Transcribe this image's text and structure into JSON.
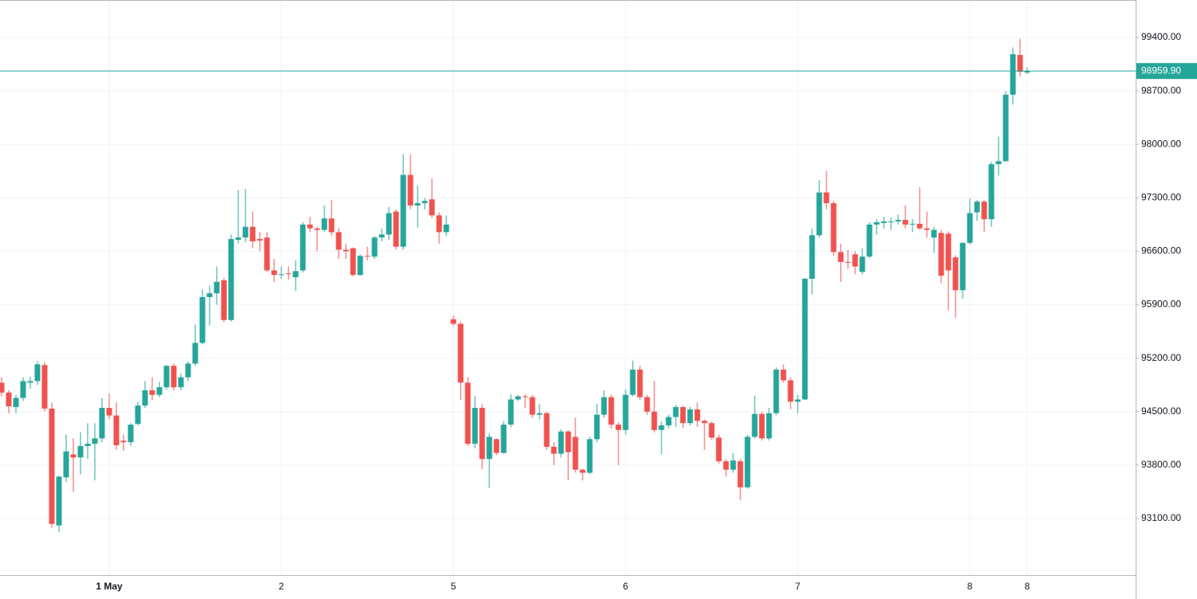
{
  "chart_data": {
    "type": "candlestick",
    "categories": [
      null,
      null,
      null,
      null,
      null,
      null,
      null,
      null,
      null,
      null,
      null,
      null,
      null,
      null,
      null,
      "1 May",
      null,
      null,
      null,
      null,
      null,
      null,
      null,
      null,
      null,
      null,
      null,
      null,
      null,
      null,
      null,
      null,
      null,
      null,
      null,
      null,
      null,
      null,
      null,
      "2",
      null,
      null,
      null,
      null,
      null,
      null,
      null,
      null,
      null,
      null,
      null,
      null,
      null,
      null,
      null,
      null,
      null,
      null,
      null,
      null,
      null,
      null,
      null,
      "5",
      null,
      null,
      null,
      null,
      null,
      null,
      null,
      null,
      null,
      null,
      null,
      null,
      null,
      null,
      null,
      null,
      null,
      null,
      null,
      null,
      null,
      null,
      null,
      "6",
      null,
      null,
      null,
      null,
      null,
      null,
      null,
      null,
      null,
      null,
      null,
      null,
      null,
      null,
      null,
      null,
      null,
      null,
      null,
      null,
      null,
      null,
      null,
      "7",
      null,
      null,
      null,
      null,
      null,
      null,
      null,
      null,
      null,
      null,
      null,
      null,
      null,
      null,
      null,
      null,
      null,
      null,
      null,
      null,
      null,
      null,
      null,
      "8",
      null,
      null,
      null,
      null,
      null,
      null,
      null,
      "8"
    ],
    "open": [
      94880,
      94750,
      94560,
      94680,
      94880,
      94900,
      95110,
      94540,
      93010,
      93640,
      93940,
      93900,
      94050,
      94080,
      94150,
      94550,
      94450,
      94120,
      94100,
      94340,
      94580,
      94780,
      94720,
      94820,
      95100,
      94820,
      94950,
      95130,
      95400,
      96000,
      96050,
      96220,
      95700,
      96750,
      96780,
      96920,
      96760,
      96780,
      96350,
      96290,
      96310,
      96260,
      96350,
      96950,
      96900,
      96880,
      97030,
      96850,
      96620,
      96640,
      96290,
      96540,
      96530,
      96780,
      96820,
      97120,
      96660,
      97600,
      97200,
      97230,
      97280,
      97070,
      96850,
      95710,
      95650,
      94880,
      94080,
      94550,
      93880,
      94140,
      93960,
      94330,
      94660,
      94700,
      94690,
      94460,
      94480,
      94040,
      93950,
      94240,
      94170,
      93740,
      93700,
      94140,
      94460,
      94690,
      94330,
      94260,
      94720,
      95050,
      94690,
      94500,
      94260,
      94320,
      94430,
      94560,
      94350,
      94530,
      94380,
      94350,
      94160,
      93850,
      93740,
      93850,
      93510,
      94170,
      94470,
      94150,
      94480,
      95050,
      94910,
      94630,
      94660,
      96240,
      96810,
      97370,
      97230,
      96590,
      96460,
      96560,
      96330,
      96530,
      96950,
      96970,
      96990,
      96990,
      97010,
      96950,
      96960,
      96900,
      96780,
      96840,
      96830,
      96520,
      96090,
      96710,
      97110,
      97250,
      97020,
      97740,
      97780,
      98650,
      99170,
      98940
    ],
    "high": [
      94950,
      94780,
      94720,
      94950,
      94960,
      95160,
      95150,
      94620,
      93660,
      94200,
      94150,
      94230,
      94350,
      94350,
      94680,
      94740,
      94620,
      94200,
      94350,
      94630,
      94900,
      94950,
      94890,
      95110,
      95130,
      95000,
      95160,
      95640,
      96100,
      96150,
      96400,
      96250,
      96820,
      97400,
      97420,
      97120,
      96850,
      96850,
      96500,
      96400,
      96400,
      96480,
      96980,
      97050,
      96920,
      97200,
      97270,
      96900,
      96700,
      96650,
      96560,
      96660,
      96800,
      96900,
      97180,
      97150,
      97870,
      97870,
      97460,
      97300,
      97550,
      97110,
      97070,
      95760,
      95680,
      94950,
      94700,
      94600,
      94220,
      94150,
      94380,
      94730,
      94720,
      94730,
      94720,
      94600,
      94500,
      94100,
      94270,
      94260,
      94420,
      93750,
      94170,
      94600,
      94780,
      94720,
      94360,
      94790,
      95170,
      95100,
      94720,
      94900,
      94370,
      94460,
      94590,
      94580,
      94560,
      94620,
      94400,
      94370,
      94200,
      93880,
      93960,
      93880,
      94200,
      94710,
      94500,
      94550,
      95080,
      95120,
      94950,
      94720,
      96250,
      96900,
      97530,
      97650,
      97260,
      96700,
      96620,
      96600,
      96640,
      96980,
      97020,
      97050,
      97040,
      97080,
      97200,
      97020,
      97440,
      97120,
      96920,
      96880,
      96860,
      96550,
      96720,
      97290,
      97270,
      97270,
      97770,
      98100,
      98700,
      99270,
      99380,
      99010
    ],
    "low": [
      94700,
      94480,
      94480,
      94640,
      94800,
      94850,
      94500,
      92980,
      92920,
      93580,
      93450,
      93680,
      93880,
      93600,
      94100,
      94400,
      94000,
      93990,
      94050,
      94320,
      94550,
      94650,
      94690,
      94790,
      94780,
      94780,
      94900,
      95100,
      95380,
      95630,
      95900,
      95670,
      95680,
      96700,
      96720,
      96640,
      96600,
      96330,
      96200,
      96240,
      96230,
      96080,
      96320,
      96850,
      96600,
      96850,
      96800,
      96500,
      96500,
      96270,
      96280,
      96480,
      96500,
      96730,
      96750,
      96620,
      96620,
      97150,
      96910,
      97150,
      97040,
      96700,
      96800,
      95620,
      94650,
      94050,
      94020,
      93750,
      93500,
      93930,
      93950,
      94300,
      94640,
      94550,
      94420,
      94400,
      94000,
      93800,
      93900,
      93600,
      93700,
      93600,
      93680,
      94100,
      94420,
      94280,
      93800,
      94200,
      94700,
      94650,
      94460,
      94230,
      93940,
      94280,
      94300,
      94290,
      94320,
      94300,
      94000,
      94130,
      93820,
      93650,
      93700,
      93340,
      93490,
      94150,
      94120,
      94120,
      94450,
      94880,
      94530,
      94480,
      94650,
      96040,
      96780,
      97150,
      96540,
      96200,
      96370,
      96300,
      96300,
      96510,
      96820,
      96900,
      96880,
      96950,
      96900,
      96850,
      96880,
      96780,
      96580,
      96180,
      95830,
      95730,
      95980,
      96690,
      97000,
      96850,
      96920,
      97590,
      97770,
      98520,
      98890,
      98920
    ],
    "close": [
      94750,
      94570,
      94680,
      94900,
      94900,
      95120,
      94540,
      93030,
      93650,
      93980,
      93900,
      94050,
      94080,
      94150,
      94550,
      94450,
      94060,
      94100,
      94330,
      94580,
      94780,
      94720,
      94820,
      95100,
      94820,
      94950,
      95130,
      95400,
      96000,
      96050,
      96200,
      95700,
      96760,
      96780,
      96920,
      96730,
      96740,
      96350,
      96290,
      96300,
      96300,
      96340,
      96950,
      96900,
      96880,
      97030,
      96850,
      96620,
      96600,
      96290,
      96540,
      96530,
      96780,
      96820,
      97100,
      96660,
      97600,
      97200,
      97230,
      97260,
      97070,
      96850,
      96950,
      95650,
      94880,
      94080,
      94550,
      93880,
      94170,
      93960,
      94330,
      94660,
      94700,
      94690,
      94460,
      94480,
      94040,
      93950,
      94240,
      93970,
      93740,
      93700,
      94140,
      94460,
      94690,
      94330,
      94260,
      94720,
      95050,
      94690,
      94500,
      94260,
      94320,
      94430,
      94560,
      94350,
      94530,
      94380,
      94350,
      94160,
      93850,
      93740,
      93860,
      93510,
      94170,
      94470,
      94150,
      94480,
      95050,
      94910,
      94630,
      94660,
      96240,
      96810,
      97370,
      97230,
      96590,
      96460,
      96450,
      96400,
      96530,
      96950,
      96980,
      96990,
      96990,
      97010,
      96950,
      96960,
      96900,
      96880,
      96880,
      96280,
      96350,
      96090,
      96710,
      97100,
      97250,
      97020,
      97740,
      97780,
      98650,
      99180,
      98950,
      98959.9
    ],
    "last_price_label": "98959.90",
    "up_color": "#26a69a",
    "down_color": "#ef5350",
    "ylim": [
      92360,
      99890
    ],
    "yticks": [
      {
        "value": 93100,
        "label": "93100.00"
      },
      {
        "value": 93800,
        "label": "93800.00"
      },
      {
        "value": 94500,
        "label": "94500.00"
      },
      {
        "value": 95200,
        "label": "95200.00"
      },
      {
        "value": 95900,
        "label": "95900.00"
      },
      {
        "value": 96600,
        "label": "96600.00"
      },
      {
        "value": 97300,
        "label": "97300.00"
      },
      {
        "value": 98000,
        "label": "98000.00"
      },
      {
        "value": 98700,
        "label": "98700.00"
      },
      {
        "value": 99400,
        "label": "99400.00"
      }
    ],
    "grid": true
  }
}
